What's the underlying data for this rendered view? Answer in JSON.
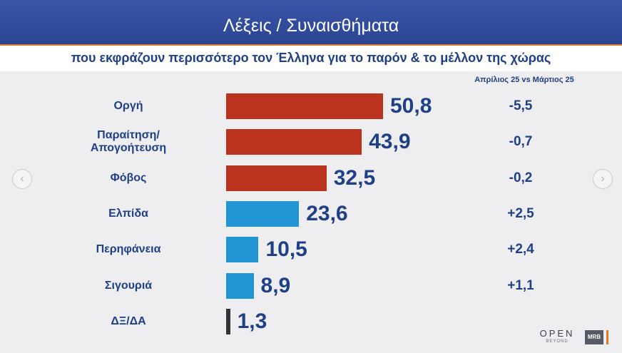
{
  "header": {
    "title": "Λέξεις / Συναισθήματα",
    "subtitle": "που εκφράζουν περισσότερο τον Έλληνα για το παρόν & το μέλλον της χώρας"
  },
  "comparison_header": "Απρίλιος 25 vs Μάρτιος 25",
  "colors": {
    "negative": "#b9331f",
    "positive": "#2196d3",
    "neutral": "#333333",
    "text": "#1f3f86",
    "header_bg": "#2f4a9a",
    "accent": "#e07a2a"
  },
  "nav": {
    "prev_icon": "chevron-left-icon",
    "next_icon": "chevron-right-icon"
  },
  "logos": {
    "open": "OPEN",
    "open_sub": "BEYOND",
    "mrb": "MRB"
  },
  "chart_data": {
    "type": "bar",
    "orientation": "horizontal",
    "title": "Λέξεις / Συναισθήματα",
    "subtitle": "που εκφράζουν περισσότερο τον Έλληνα για το παρόν & το μέλλον της χώρας",
    "categories": [
      "Οργή",
      "Παραίτηση/\nΑπογοήτευση",
      "Φόβος",
      "Ελπίδα",
      "Περηφάνεια",
      "Σιγουριά",
      "ΔΞ/ΔΑ"
    ],
    "values": [
      50.8,
      43.9,
      32.5,
      23.6,
      10.5,
      8.9,
      1.3
    ],
    "value_labels": [
      "50,8",
      "43,9",
      "32,5",
      "23,6",
      "10,5",
      "8,9",
      "1,3"
    ],
    "bar_groups": [
      "negative",
      "negative",
      "negative",
      "positive",
      "positive",
      "positive",
      "neutral"
    ],
    "change_label": "Απρίλιος 25 vs Μάρτιος 25",
    "changes": [
      "-5,5",
      "-0,7",
      "-0,2",
      "+2,5",
      "+2,4",
      "+1,1",
      ""
    ],
    "xlim": [
      0,
      60
    ],
    "grid": false,
    "legend": "none"
  }
}
